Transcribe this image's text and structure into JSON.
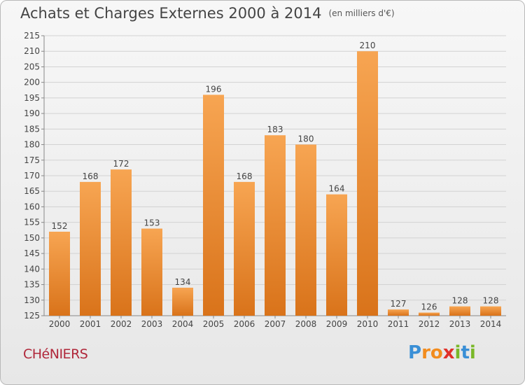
{
  "header": {
    "title": "Achats et Charges Externes 2000 à 2014",
    "unit": "(en milliers d'€)"
  },
  "footer": {
    "commune": "CHéNIERS",
    "logo_letters": [
      "P",
      "r",
      "o",
      "x",
      "i",
      "t",
      "i"
    ],
    "logo_colors": [
      "#3a8fd6",
      "#f28c1e",
      "#f28c1e",
      "#e0302a",
      "#7ab829",
      "#3a8fd6",
      "#7ab829"
    ]
  },
  "chart_data": {
    "type": "bar",
    "title": "Achats et Charges Externes 2000 à 2014",
    "subtitle": "(en milliers d'€)",
    "categories": [
      "2000",
      "2001",
      "2002",
      "2003",
      "2004",
      "2005",
      "2006",
      "2007",
      "2008",
      "2009",
      "2010",
      "2011",
      "2012",
      "2013",
      "2014"
    ],
    "values": [
      152,
      168,
      172,
      153,
      134,
      196,
      168,
      183,
      180,
      164,
      210,
      127,
      126,
      128,
      128
    ],
    "ylim": [
      125,
      215
    ],
    "yticks": [
      125,
      130,
      135,
      140,
      145,
      150,
      155,
      160,
      165,
      170,
      175,
      180,
      185,
      190,
      195,
      200,
      205,
      210,
      215
    ],
    "grid": true,
    "bar_color_top": "#f7a552",
    "bar_color_bottom": "#d9731a",
    "xlabel": "",
    "ylabel": ""
  }
}
